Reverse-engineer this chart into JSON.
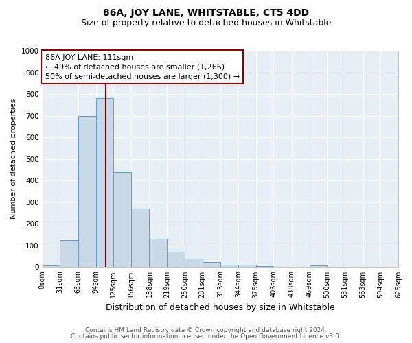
{
  "title": "86A, JOY LANE, WHITSTABLE, CT5 4DD",
  "subtitle": "Size of property relative to detached houses in Whitstable",
  "xlabel": "Distribution of detached houses by size in Whitstable",
  "ylabel": "Number of detached properties",
  "bar_values": [
    8,
    125,
    700,
    780,
    440,
    270,
    130,
    70,
    40,
    25,
    12,
    12,
    5,
    0,
    0,
    8,
    0,
    0,
    0,
    0
  ],
  "bin_edges": [
    0,
    31,
    63,
    94,
    125,
    156,
    188,
    219,
    250,
    281,
    313,
    344,
    375,
    406,
    438,
    469,
    500,
    531,
    563,
    594,
    625
  ],
  "tick_labels": [
    "0sqm",
    "31sqm",
    "63sqm",
    "94sqm",
    "125sqm",
    "156sqm",
    "188sqm",
    "219sqm",
    "250sqm",
    "281sqm",
    "313sqm",
    "344sqm",
    "375sqm",
    "406sqm",
    "438sqm",
    "469sqm",
    "500sqm",
    "531sqm",
    "563sqm",
    "594sqm",
    "625sqm"
  ],
  "bar_color": "#c9d9e8",
  "bar_edge_color": "#5b9bd5",
  "vline_x": 111,
  "vline_color": "#8b0000",
  "ylim": [
    0,
    1000
  ],
  "annotation_line1": "86A JOY LANE: 111sqm",
  "annotation_line2": "← 49% of detached houses are smaller (1,266)",
  "annotation_line3": "50% of semi-detached houses are larger (1,300) →",
  "annotation_box_color": "white",
  "annotation_box_edge_color": "#8b0000",
  "background_color": "#e8eef5",
  "footer_line1": "Contains HM Land Registry data © Crown copyright and database right 2024.",
  "footer_line2": "Contains public sector information licensed under the Open Government Licence v3.0.",
  "title_fontsize": 10,
  "subtitle_fontsize": 9,
  "axis_label_fontsize": 9,
  "tick_fontsize": 7,
  "annotation_fontsize": 8,
  "footer_fontsize": 6.5,
  "ylabel_fontsize": 8
}
